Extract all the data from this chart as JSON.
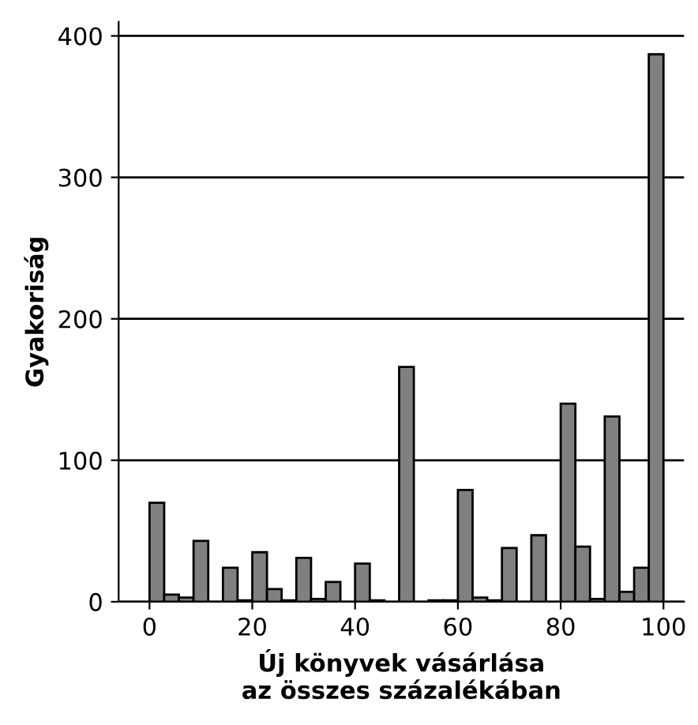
{
  "chart_data": {
    "type": "histogram",
    "xlabel": "Új könyvek vásárlása\naz összes százalékában",
    "ylabel": "Gyakoriság",
    "bins": [
      0,
      2.86,
      5.71,
      8.57,
      11.43,
      14.29,
      17.14,
      20,
      22.86,
      25.71,
      28.57,
      31.43,
      34.29,
      37.14,
      40,
      42.86,
      45.71,
      48.57,
      51.43,
      54.29,
      57.14,
      60,
      62.86,
      65.71,
      68.57,
      71.43,
      74.29,
      77.14,
      80,
      82.86,
      85.71,
      88.57,
      91.43,
      94.29,
      97.14,
      100
    ],
    "values": [
      70,
      5,
      3,
      43,
      0,
      24,
      1,
      35,
      9,
      1,
      31,
      2,
      14,
      0,
      27,
      1,
      0,
      166,
      0,
      1,
      1,
      79,
      3,
      1,
      38,
      0,
      47,
      0,
      140,
      39,
      2,
      131,
      7,
      24,
      387
    ],
    "color": "#808080",
    "xlim": [
      -6,
      104
    ],
    "ylim": [
      0,
      410
    ],
    "xticks": [
      0,
      20,
      40,
      60,
      80,
      100
    ],
    "yticks": [
      0,
      100,
      200,
      300,
      400
    ],
    "grid": "y"
  }
}
